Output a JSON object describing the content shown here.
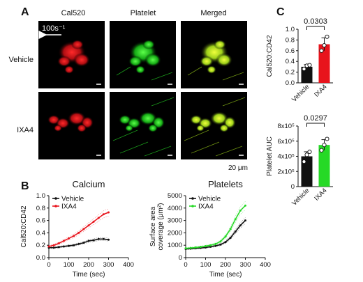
{
  "panel_letters": [
    "A",
    "B",
    "C"
  ],
  "micro": {
    "columns": [
      "Cal520",
      "Platelet",
      "Merged"
    ],
    "rows": [
      "Vehicle",
      "IXA4"
    ],
    "flow_label": "100s⁻¹",
    "scale_label": "20 μm",
    "colors": {
      "red": "#e8141c",
      "green": "#26d926",
      "merged": "#c8e61e"
    }
  },
  "chart_data": [
    {
      "id": "calcium",
      "type": "line",
      "title": "Calcium",
      "xlabel": "Time (sec)",
      "ylabel": "Cal520:CD42",
      "xlim": [
        0,
        400
      ],
      "ylim": [
        0,
        1.0
      ],
      "xticks": [
        "0",
        "100",
        "200",
        "300",
        "400"
      ],
      "yticks": [
        "0.0",
        "0.2",
        "0.4",
        "0.6",
        "0.8",
        "1.0"
      ],
      "x": [
        0,
        25,
        50,
        75,
        100,
        125,
        150,
        175,
        200,
        225,
        250,
        275,
        300
      ],
      "series": [
        {
          "name": "Vehicle",
          "color": "#111111",
          "values": [
            0.16,
            0.16,
            0.17,
            0.18,
            0.19,
            0.2,
            0.22,
            0.24,
            0.27,
            0.28,
            0.3,
            0.3,
            0.29
          ]
        },
        {
          "name": "IXA4",
          "color": "#e8141c",
          "values": [
            0.18,
            0.2,
            0.23,
            0.27,
            0.31,
            0.35,
            0.4,
            0.46,
            0.52,
            0.58,
            0.64,
            0.7,
            0.73
          ]
        }
      ]
    },
    {
      "id": "platelets",
      "type": "line",
      "title": "Platelets",
      "xlabel": "Time (sec)",
      "ylabel": "Surface area coverage (μm²)",
      "ylabel_lines": [
        "Surface area",
        "coverage (μm²)"
      ],
      "xlim": [
        0,
        400
      ],
      "ylim": [
        0,
        5000
      ],
      "xticks": [
        "0",
        "100",
        "200",
        "300",
        "400"
      ],
      "yticks": [
        "0",
        "1000",
        "2000",
        "3000",
        "4000",
        "5000"
      ],
      "x": [
        0,
        25,
        50,
        75,
        100,
        125,
        150,
        175,
        200,
        225,
        250,
        275,
        300
      ],
      "series": [
        {
          "name": "Vehicle",
          "color": "#111111",
          "values": [
            700,
            720,
            750,
            780,
            820,
            880,
            950,
            1050,
            1250,
            1600,
            2100,
            2600,
            3000
          ]
        },
        {
          "name": "IXA4",
          "color": "#26d926",
          "values": [
            750,
            780,
            820,
            870,
            930,
            1000,
            1100,
            1300,
            1700,
            2300,
            3100,
            3800,
            4200
          ]
        }
      ]
    },
    {
      "id": "ratio_bar",
      "type": "bar",
      "ylabel": "Cal520:CD42",
      "categories": [
        "Vehicle",
        "IXA4"
      ],
      "values": [
        0.3,
        0.72
      ],
      "errors": [
        0.04,
        0.12
      ],
      "points": [
        [
          0.26,
          0.32,
          0.33
        ],
        [
          0.6,
          0.7,
          0.86
        ]
      ],
      "colors": [
        "#111111",
        "#e8141c"
      ],
      "ylim": [
        0,
        1.0
      ],
      "yticks": [
        "0.0",
        "0.2",
        "0.4",
        "0.6",
        "0.8",
        "1.0"
      ],
      "p_value": "0.0303"
    },
    {
      "id": "auc_bar",
      "type": "bar",
      "ylabel": "Platelet AUC",
      "categories": [
        "Vehicle",
        "IXA4"
      ],
      "values": [
        400000,
        550000
      ],
      "errors": [
        60000,
        70000
      ],
      "points": [
        [
          330000,
          420000,
          460000
        ],
        [
          480000,
          550000,
          630000
        ]
      ],
      "colors": [
        "#111111",
        "#26d926"
      ],
      "ylim": [
        0,
        800000
      ],
      "yticks": [
        "0",
        "2x10⁵",
        "4x10⁵",
        "6x10⁵",
        "8x10⁵"
      ],
      "p_value": "0.0297"
    }
  ]
}
